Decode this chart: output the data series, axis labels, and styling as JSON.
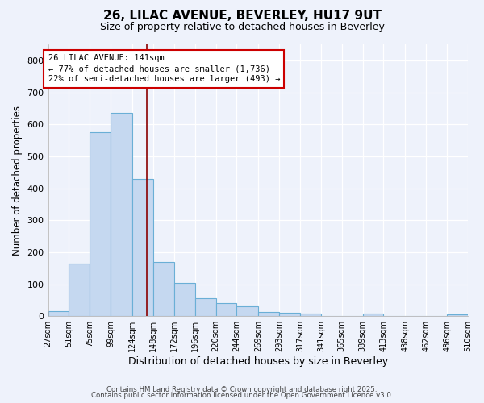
{
  "title_line1": "26, LILAC AVENUE, BEVERLEY, HU17 9UT",
  "title_line2": "Size of property relative to detached houses in Beverley",
  "xlabel": "Distribution of detached houses by size in Beverley",
  "ylabel": "Number of detached properties",
  "bin_edges": [
    27,
    51,
    75,
    99,
    124,
    148,
    172,
    196,
    220,
    244,
    269,
    293,
    317,
    341,
    365,
    389,
    413,
    438,
    462,
    486,
    510
  ],
  "bar_heights": [
    15,
    165,
    575,
    635,
    430,
    170,
    105,
    55,
    40,
    30,
    12,
    10,
    7,
    0,
    0,
    7,
    0,
    0,
    0,
    5
  ],
  "bar_color": "#c5d8f0",
  "bar_edge_color": "#6aafd6",
  "vline_x": 141,
  "vline_color": "#8b0000",
  "annotation_text": "26 LILAC AVENUE: 141sqm\n← 77% of detached houses are smaller (1,736)\n22% of semi-detached houses are larger (493) →",
  "annotation_box_color": "#ffffff",
  "annotation_border_color": "#cc0000",
  "ylim": [
    0,
    850
  ],
  "yticks": [
    0,
    100,
    200,
    300,
    400,
    500,
    600,
    700,
    800
  ],
  "bg_color": "#eef2fb",
  "grid_color": "#ffffff",
  "footer_line1": "Contains HM Land Registry data © Crown copyright and database right 2025.",
  "footer_line2": "Contains public sector information licensed under the Open Government Licence v3.0.",
  "title_fontsize": 11,
  "subtitle_fontsize": 9,
  "tick_label_fontsize": 7,
  "ylabel_fontsize": 8.5,
  "xlabel_fontsize": 9
}
